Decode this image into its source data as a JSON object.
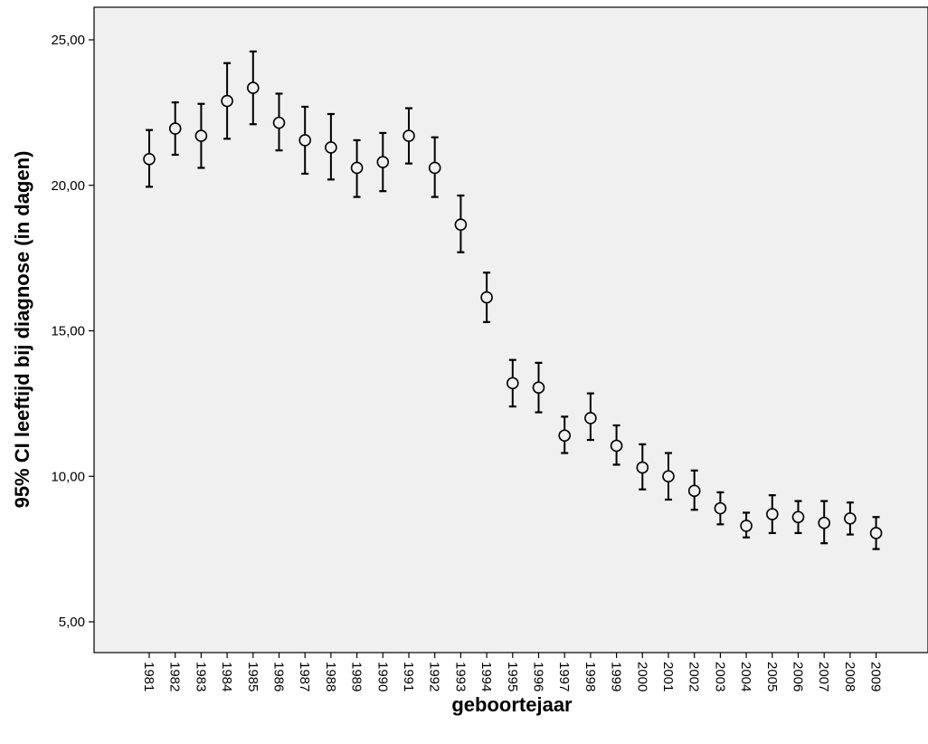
{
  "chart_data": {
    "type": "errorbar",
    "xlabel": "geboortejaar",
    "ylabel": "95% CI leeftijd bij diagnose (in dagen)",
    "ylim": [
      3.9,
      26.1
    ],
    "yticks": [
      "5,00",
      "10,00",
      "15,00",
      "20,00",
      "25,00"
    ],
    "ytick_values": [
      5,
      10,
      15,
      20,
      25
    ],
    "grid": false,
    "categories": [
      "1981",
      "1982",
      "1983",
      "1984",
      "1985",
      "1986",
      "1987",
      "1988",
      "1989",
      "1990",
      "1991",
      "1992",
      "1993",
      "1994",
      "1995",
      "1996",
      "1997",
      "1998",
      "1999",
      "2000",
      "2001",
      "2002",
      "2003",
      "2004",
      "2005",
      "2006",
      "2007",
      "2008",
      "2009"
    ],
    "mean": [
      20.9,
      21.95,
      21.7,
      22.9,
      23.35,
      22.15,
      21.55,
      21.3,
      20.6,
      20.8,
      21.7,
      20.6,
      18.65,
      16.15,
      13.2,
      13.05,
      11.4,
      12.0,
      11.05,
      10.3,
      10.0,
      9.5,
      8.9,
      8.3,
      8.7,
      8.6,
      8.4,
      8.55,
      8.05
    ],
    "lower": [
      19.95,
      21.05,
      20.6,
      21.6,
      22.1,
      21.2,
      20.4,
      20.2,
      19.6,
      19.8,
      20.75,
      19.6,
      17.7,
      15.3,
      12.4,
      12.2,
      10.8,
      11.25,
      10.4,
      9.55,
      9.2,
      8.85,
      8.35,
      7.9,
      8.05,
      8.05,
      7.7,
      8.0,
      7.5
    ],
    "upper": [
      21.9,
      22.85,
      22.8,
      24.2,
      24.6,
      23.15,
      22.7,
      22.45,
      21.55,
      21.8,
      22.65,
      21.65,
      19.65,
      17.0,
      14.0,
      13.9,
      12.05,
      12.85,
      11.75,
      11.1,
      10.8,
      10.2,
      9.45,
      8.75,
      9.35,
      9.15,
      9.15,
      9.1,
      8.6
    ],
    "background_color": "#f0f0f0",
    "marker_color": "#000000"
  }
}
